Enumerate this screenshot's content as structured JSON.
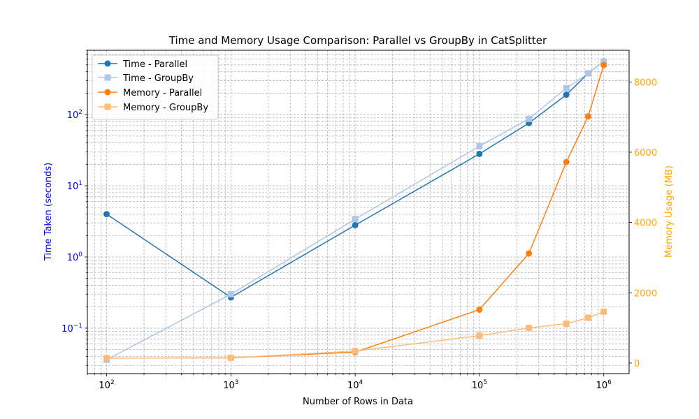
{
  "chart_data": {
    "type": "line",
    "title": "Time and Memory Usage Comparison: Parallel vs GroupBy in CatSplitter",
    "xlabel": "Number of Rows in Data",
    "ylabel_left": "Time Taken (seconds)",
    "ylabel_right": "Memory Usage (MB)",
    "x_scale": "log",
    "y_left_scale": "log",
    "xlim": [
      70,
      1600000
    ],
    "ylim_left": [
      0.023,
      800
    ],
    "ylim_right": [
      -300,
      8900
    ],
    "x_ticks": [
      100,
      1000,
      10000,
      100000,
      1000000
    ],
    "x_tick_labels": [
      {
        "base": "10",
        "exp": "2"
      },
      {
        "base": "10",
        "exp": "3"
      },
      {
        "base": "10",
        "exp": "4"
      },
      {
        "base": "10",
        "exp": "5"
      },
      {
        "base": "10",
        "exp": "6"
      }
    ],
    "y_left_ticks": [
      0.1,
      1,
      10,
      100
    ],
    "y_left_tick_labels": [
      {
        "base": "10",
        "exp": "−1"
      },
      {
        "base": "10",
        "exp": "0"
      },
      {
        "base": "10",
        "exp": "1"
      },
      {
        "base": "10",
        "exp": "2"
      }
    ],
    "y_right_ticks": [
      0,
      2000,
      4000,
      6000,
      8000
    ],
    "y_right_tick_labels": [
      "0",
      "2000",
      "4000",
      "6000",
      "8000"
    ],
    "grid": true,
    "legend_position": "upper-left",
    "colors": {
      "left_axis_labels": "#0000ff",
      "right_axis_labels": "#ffa500"
    },
    "series": [
      {
        "name": "Time - Parallel",
        "axis": "left",
        "color": "#1f77b4",
        "marker": "circle",
        "x": [
          100,
          1000,
          10000,
          100000,
          250000,
          500000,
          750000,
          1000000
        ],
        "values": [
          4.0,
          0.27,
          2.8,
          28,
          76,
          190,
          380,
          560
        ]
      },
      {
        "name": "Time - GroupBy",
        "axis": "left",
        "color": "#aec7e8",
        "marker": "square",
        "x": [
          100,
          1000,
          10000,
          100000,
          250000,
          500000,
          750000,
          1000000
        ],
        "values": [
          0.036,
          0.3,
          3.4,
          36,
          87,
          235,
          380,
          560
        ]
      },
      {
        "name": "Memory - Parallel",
        "axis": "right",
        "color": "#ff7f0e",
        "marker": "circle",
        "x": [
          100,
          1000,
          10000,
          100000,
          250000,
          500000,
          750000,
          1000000
        ],
        "values": [
          140,
          150,
          310,
          1520,
          3120,
          5720,
          7020,
          8480
        ]
      },
      {
        "name": "Memory - GroupBy",
        "axis": "right",
        "color": "#ffbb78",
        "marker": "square",
        "x": [
          100,
          1000,
          10000,
          100000,
          250000,
          500000,
          750000,
          1000000
        ],
        "values": [
          140,
          150,
          340,
          780,
          1000,
          1120,
          1290,
          1460
        ]
      }
    ]
  }
}
